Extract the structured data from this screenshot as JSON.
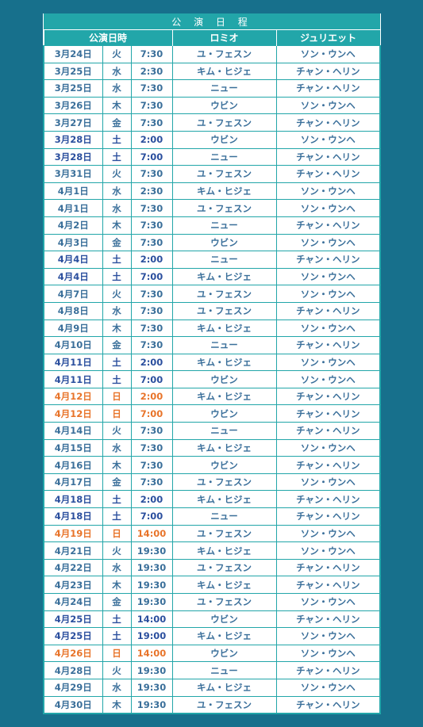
{
  "title": "公 演 日 程",
  "headers": {
    "date": "公演日時",
    "romeo": "ロミオ",
    "juliet": "ジュリエット"
  },
  "colors": {
    "background": "#17708c",
    "header": "#22a6a9",
    "text": "#3a6f9a",
    "saturday": "#2b4f9e",
    "sunday": "#e8742a"
  },
  "rows": [
    {
      "date": "3月24日",
      "day": "火",
      "time": "7:30",
      "romeo": "ユ・フェスン",
      "juliet": "ソン・ウンヘ",
      "type": "wd"
    },
    {
      "date": "3月25日",
      "day": "水",
      "time": "2:30",
      "romeo": "キム・ヒジェ",
      "juliet": "チャン・ヘリン",
      "type": "wd"
    },
    {
      "date": "3月25日",
      "day": "水",
      "time": "7:30",
      "romeo": "ニュー",
      "juliet": "チャン・ヘリン",
      "type": "wd"
    },
    {
      "date": "3月26日",
      "day": "木",
      "time": "7:30",
      "romeo": "ウビン",
      "juliet": "ソン・ウンヘ",
      "type": "wd"
    },
    {
      "date": "3月27日",
      "day": "金",
      "time": "7:30",
      "romeo": "ユ・フェスン",
      "juliet": "チャン・ヘリン",
      "type": "wd"
    },
    {
      "date": "3月28日",
      "day": "土",
      "time": "2:00",
      "romeo": "ウビン",
      "juliet": "ソン・ウンヘ",
      "type": "sat"
    },
    {
      "date": "3月28日",
      "day": "土",
      "time": "7:00",
      "romeo": "ニュー",
      "juliet": "チャン・ヘリン",
      "type": "sat"
    },
    {
      "date": "3月31日",
      "day": "火",
      "time": "7:30",
      "romeo": "ユ・フェスン",
      "juliet": "チャン・ヘリン",
      "type": "wd"
    },
    {
      "date": "4月1日",
      "day": "水",
      "time": "2:30",
      "romeo": "キム・ヒジェ",
      "juliet": "ソン・ウンヘ",
      "type": "wd"
    },
    {
      "date": "4月1日",
      "day": "水",
      "time": "7:30",
      "romeo": "ユ・フェスン",
      "juliet": "ソン・ウンヘ",
      "type": "wd"
    },
    {
      "date": "4月2日",
      "day": "木",
      "time": "7:30",
      "romeo": "ニュー",
      "juliet": "チャン・ヘリン",
      "type": "wd"
    },
    {
      "date": "4月3日",
      "day": "金",
      "time": "7:30",
      "romeo": "ウビン",
      "juliet": "ソン・ウンヘ",
      "type": "wd"
    },
    {
      "date": "4月4日",
      "day": "土",
      "time": "2:00",
      "romeo": "ニュー",
      "juliet": "チャン・ヘリン",
      "type": "sat"
    },
    {
      "date": "4月4日",
      "day": "土",
      "time": "7:00",
      "romeo": "キム・ヒジェ",
      "juliet": "ソン・ウンヘ",
      "type": "sat"
    },
    {
      "date": "4月7日",
      "day": "火",
      "time": "7:30",
      "romeo": "ユ・フェスン",
      "juliet": "ソン・ウンヘ",
      "type": "wd"
    },
    {
      "date": "4月8日",
      "day": "水",
      "time": "7:30",
      "romeo": "ユ・フェスン",
      "juliet": "チャン・ヘリン",
      "type": "wd"
    },
    {
      "date": "4月9日",
      "day": "木",
      "time": "7:30",
      "romeo": "キム・ヒジェ",
      "juliet": "ソン・ウンヘ",
      "type": "wd"
    },
    {
      "date": "4月10日",
      "day": "金",
      "time": "7:30",
      "romeo": "ニュー",
      "juliet": "チャン・ヘリン",
      "type": "wd"
    },
    {
      "date": "4月11日",
      "day": "土",
      "time": "2:00",
      "romeo": "キム・ヒジェ",
      "juliet": "ソン・ウンヘ",
      "type": "sat"
    },
    {
      "date": "4月11日",
      "day": "土",
      "time": "7:00",
      "romeo": "ウビン",
      "juliet": "ソン・ウンヘ",
      "type": "sat"
    },
    {
      "date": "4月12日",
      "day": "日",
      "time": "2:00",
      "romeo": "キム・ヒジェ",
      "juliet": "チャン・ヘリン",
      "type": "sun"
    },
    {
      "date": "4月12日",
      "day": "日",
      "time": "7:00",
      "romeo": "ウビン",
      "juliet": "チャン・ヘリン",
      "type": "sun"
    },
    {
      "date": "4月14日",
      "day": "火",
      "time": "7:30",
      "romeo": "ニュー",
      "juliet": "チャン・ヘリン",
      "type": "wd"
    },
    {
      "date": "4月15日",
      "day": "水",
      "time": "7:30",
      "romeo": "キム・ヒジェ",
      "juliet": "ソン・ウンヘ",
      "type": "wd"
    },
    {
      "date": "4月16日",
      "day": "木",
      "time": "7:30",
      "romeo": "ウビン",
      "juliet": "チャン・ヘリン",
      "type": "wd"
    },
    {
      "date": "4月17日",
      "day": "金",
      "time": "7:30",
      "romeo": "ユ・フェスン",
      "juliet": "ソン・ウンヘ",
      "type": "wd"
    },
    {
      "date": "4月18日",
      "day": "土",
      "time": "2:00",
      "romeo": "キム・ヒジェ",
      "juliet": "チャン・ヘリン",
      "type": "sat"
    },
    {
      "date": "4月18日",
      "day": "土",
      "time": "7:00",
      "romeo": "ニュー",
      "juliet": "チャン・ヘリン",
      "type": "sat"
    },
    {
      "date": "4月19日",
      "day": "日",
      "time": "14:00",
      "romeo": "ユ・フェスン",
      "juliet": "ソン・ウンヘ",
      "type": "sun"
    },
    {
      "date": "4月21日",
      "day": "火",
      "time": "19:30",
      "romeo": "キム・ヒジェ",
      "juliet": "ソン・ウンヘ",
      "type": "wd"
    },
    {
      "date": "4月22日",
      "day": "水",
      "time": "19:30",
      "romeo": "ユ・フェスン",
      "juliet": "チャン・ヘリン",
      "type": "wd"
    },
    {
      "date": "4月23日",
      "day": "木",
      "time": "19:30",
      "romeo": "キム・ヒジェ",
      "juliet": "チャン・ヘリン",
      "type": "wd"
    },
    {
      "date": "4月24日",
      "day": "金",
      "time": "19:30",
      "romeo": "ユ・フェスン",
      "juliet": "ソン・ウンヘ",
      "type": "wd"
    },
    {
      "date": "4月25日",
      "day": "土",
      "time": "14:00",
      "romeo": "ウビン",
      "juliet": "チャン・ヘリン",
      "type": "sat"
    },
    {
      "date": "4月25日",
      "day": "土",
      "time": "19:00",
      "romeo": "キム・ヒジェ",
      "juliet": "ソン・ウンヘ",
      "type": "sat"
    },
    {
      "date": "4月26日",
      "day": "日",
      "time": "14:00",
      "romeo": "ウビン",
      "juliet": "ソン・ウンヘ",
      "type": "sun"
    },
    {
      "date": "4月28日",
      "day": "火",
      "time": "19:30",
      "romeo": "ニュー",
      "juliet": "チャン・ヘリン",
      "type": "wd"
    },
    {
      "date": "4月29日",
      "day": "水",
      "time": "19:30",
      "romeo": "キム・ヒジェ",
      "juliet": "ソン・ウンヘ",
      "type": "wd"
    },
    {
      "date": "4月30日",
      "day": "木",
      "time": "19:30",
      "romeo": "ユ・フェスン",
      "juliet": "チャン・ヘリン",
      "type": "wd"
    }
  ]
}
